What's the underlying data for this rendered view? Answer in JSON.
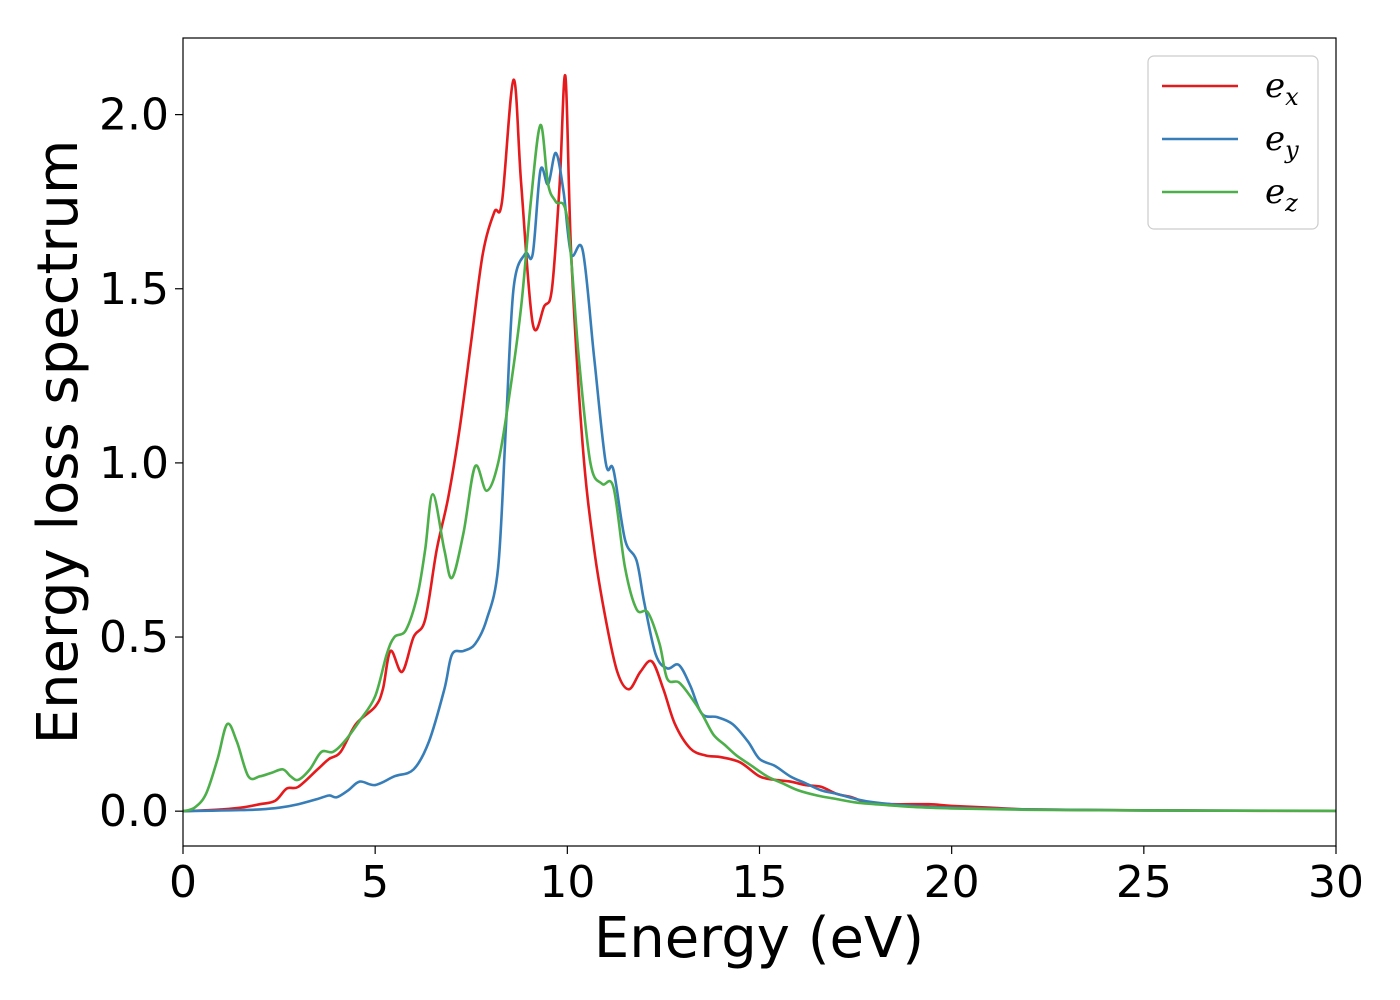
{
  "chart_data": {
    "type": "line",
    "xlabel": "Energy (eV)",
    "ylabel": "Energy loss spectrum",
    "xlim": [
      0,
      30
    ],
    "ylim": [
      -0.1,
      2.22
    ],
    "xticks": [
      0,
      5,
      10,
      15,
      20,
      25,
      30
    ],
    "xtick_labels": [
      "0",
      "5",
      "10",
      "15",
      "20",
      "25",
      "30"
    ],
    "yticks": [
      0.0,
      0.5,
      1.0,
      1.5,
      2.0
    ],
    "ytick_labels": [
      "0.0",
      "0.5",
      "1.0",
      "1.5",
      "2.0"
    ],
    "grid": false,
    "legend_position": "top-right",
    "series": [
      {
        "name": "e_x",
        "label_base": "e",
        "label_sub": "x",
        "color": "#e41a1c",
        "x": [
          0,
          0.5,
          1.0,
          1.5,
          2.0,
          2.4,
          2.7,
          3.0,
          3.5,
          3.8,
          4.1,
          4.5,
          5.0,
          5.2,
          5.4,
          5.7,
          6.0,
          6.3,
          6.6,
          6.9,
          7.2,
          7.5,
          7.8,
          8.1,
          8.3,
          8.6,
          8.8,
          9.1,
          9.4,
          9.6,
          9.8,
          9.95,
          10.1,
          10.4,
          10.7,
          11.0,
          11.3,
          11.6,
          11.9,
          12.2,
          12.5,
          12.8,
          13.2,
          13.6,
          14.0,
          14.5,
          15.0,
          15.4,
          15.8,
          16.2,
          16.6,
          17.0,
          17.4,
          17.8,
          18.5,
          19.4,
          20.0,
          21.0,
          22.0,
          24.0,
          26.0,
          28.0,
          30.0
        ],
        "y": [
          0.0,
          0.002,
          0.005,
          0.01,
          0.02,
          0.03,
          0.065,
          0.07,
          0.12,
          0.15,
          0.17,
          0.25,
          0.3,
          0.35,
          0.46,
          0.4,
          0.5,
          0.55,
          0.75,
          0.9,
          1.1,
          1.35,
          1.6,
          1.72,
          1.75,
          2.1,
          1.8,
          1.4,
          1.45,
          1.5,
          1.8,
          2.11,
          1.6,
          1.05,
          0.75,
          0.55,
          0.4,
          0.35,
          0.4,
          0.43,
          0.35,
          0.25,
          0.18,
          0.16,
          0.155,
          0.14,
          0.1,
          0.09,
          0.085,
          0.075,
          0.07,
          0.05,
          0.04,
          0.025,
          0.02,
          0.02,
          0.015,
          0.01,
          0.005,
          0.003,
          0.002,
          0.001,
          0.001
        ]
      },
      {
        "name": "e_y",
        "label_base": "e",
        "label_sub": "y",
        "color": "#377eb8",
        "x": [
          0,
          0.5,
          1.0,
          1.5,
          2.0,
          2.5,
          3.0,
          3.5,
          3.8,
          4.0,
          4.3,
          4.6,
          5.0,
          5.5,
          6.0,
          6.4,
          6.8,
          7.0,
          7.3,
          7.6,
          7.9,
          8.2,
          8.4,
          8.6,
          8.9,
          9.1,
          9.3,
          9.5,
          9.7,
          9.9,
          10.1,
          10.4,
          10.7,
          11.0,
          11.2,
          11.5,
          11.8,
          12.0,
          12.3,
          12.6,
          12.9,
          13.2,
          13.5,
          13.9,
          14.3,
          14.7,
          15.0,
          15.4,
          15.8,
          16.2,
          16.6,
          17.0,
          17.5,
          18.0,
          19.0,
          20.0,
          22.0,
          25.0,
          30.0
        ],
        "y": [
          0.0,
          0.001,
          0.002,
          0.003,
          0.005,
          0.01,
          0.02,
          0.035,
          0.045,
          0.04,
          0.06,
          0.085,
          0.075,
          0.1,
          0.12,
          0.2,
          0.35,
          0.45,
          0.46,
          0.48,
          0.55,
          0.7,
          1.1,
          1.5,
          1.6,
          1.6,
          1.84,
          1.8,
          1.89,
          1.78,
          1.6,
          1.61,
          1.3,
          1.0,
          0.98,
          0.78,
          0.72,
          0.6,
          0.45,
          0.41,
          0.42,
          0.36,
          0.28,
          0.27,
          0.25,
          0.2,
          0.15,
          0.13,
          0.1,
          0.08,
          0.06,
          0.05,
          0.035,
          0.025,
          0.015,
          0.01,
          0.005,
          0.002,
          0.001
        ]
      },
      {
        "name": "e_z",
        "label_base": "e",
        "label_sub": "z",
        "color": "#4daf4a",
        "x": [
          0,
          0.3,
          0.6,
          0.9,
          1.15,
          1.4,
          1.7,
          2.0,
          2.3,
          2.6,
          2.8,
          3.0,
          3.3,
          3.6,
          3.9,
          4.2,
          4.6,
          5.0,
          5.3,
          5.5,
          5.8,
          6.1,
          6.3,
          6.5,
          6.8,
          7.0,
          7.3,
          7.6,
          7.9,
          8.2,
          8.5,
          8.8,
          9.05,
          9.3,
          9.5,
          9.7,
          10.0,
          10.3,
          10.6,
          10.9,
          11.2,
          11.5,
          11.8,
          12.1,
          12.4,
          12.6,
          12.9,
          13.2,
          13.5,
          13.8,
          14.1,
          14.4,
          14.8,
          15.2,
          15.6,
          16.0,
          16.5,
          17.0,
          17.5,
          18.0,
          19.0,
          20.0,
          22.0,
          25.0,
          30.0
        ],
        "y": [
          0.0,
          0.01,
          0.05,
          0.15,
          0.25,
          0.2,
          0.1,
          0.1,
          0.11,
          0.12,
          0.1,
          0.09,
          0.12,
          0.17,
          0.17,
          0.2,
          0.26,
          0.33,
          0.45,
          0.5,
          0.52,
          0.62,
          0.75,
          0.91,
          0.75,
          0.67,
          0.8,
          0.99,
          0.92,
          1.0,
          1.2,
          1.45,
          1.75,
          1.97,
          1.8,
          1.75,
          1.7,
          1.3,
          1.0,
          0.94,
          0.93,
          0.7,
          0.58,
          0.57,
          0.48,
          0.38,
          0.37,
          0.33,
          0.28,
          0.22,
          0.19,
          0.16,
          0.13,
          0.1,
          0.08,
          0.06,
          0.045,
          0.035,
          0.025,
          0.02,
          0.012,
          0.008,
          0.004,
          0.002,
          0.001
        ]
      }
    ]
  }
}
